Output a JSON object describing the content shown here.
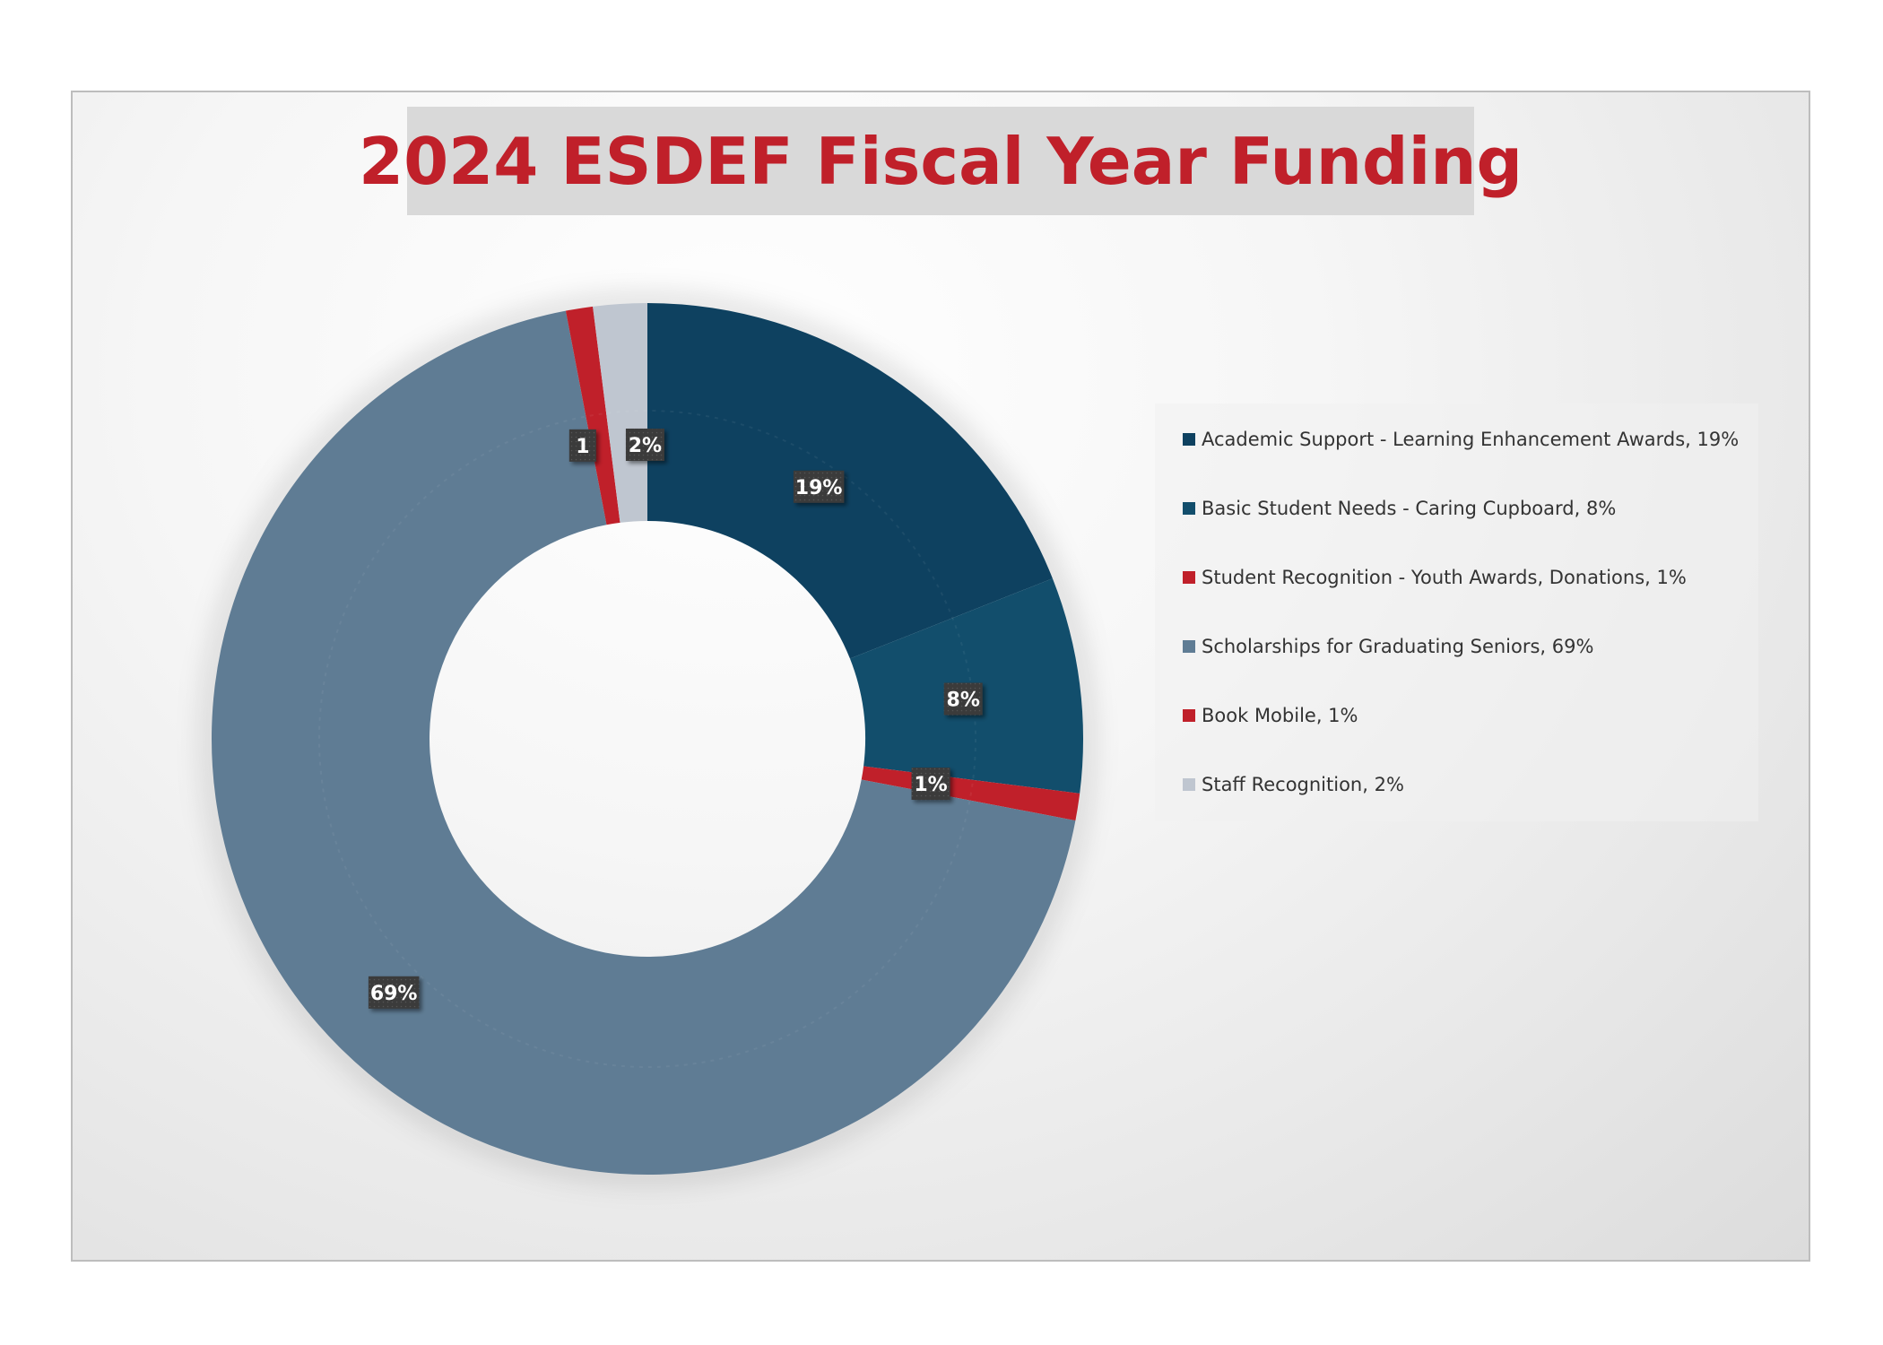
{
  "chart_data": {
    "type": "pie",
    "variant": "donut",
    "title": "2024 ESDEF Fiscal Year Funding",
    "slices": [
      {
        "label": "Academic Support - Learning Enhancement Awards",
        "value": 19,
        "data_label": "19%",
        "legend_text": "Academic Support - Learning Enhancement Awards, 19%",
        "color": "#0e4160"
      },
      {
        "label": "Basic Student Needs - Caring Cupboard",
        "value": 8,
        "data_label": "8%",
        "legend_text": "Basic Student Needs - Caring Cupboard, 8%",
        "color": "#124e6c"
      },
      {
        "label": "Student Recognition - Youth Awards, Donations",
        "value": 1,
        "data_label": "1%",
        "legend_text": "Student Recognition - Youth Awards, Donations, 1%",
        "color": "#c0202a"
      },
      {
        "label": "Scholarships for Graduating Seniors",
        "value": 69,
        "data_label": "69%",
        "legend_text": "Scholarships for Graduating Seniors, 69%",
        "color": "#5f7c94"
      },
      {
        "label": "Book Mobile",
        "value": 1,
        "data_label": "1",
        "legend_text": "Book Mobile, 1%",
        "color": "#c0202a"
      },
      {
        "label": "Staff Recognition",
        "value": 2,
        "data_label": "2%",
        "legend_text": "Staff Recognition, 2%",
        "color": "#bfc6d0"
      }
    ],
    "legend_position": "right"
  },
  "colors": {
    "title_text": "#c0202a",
    "title_background": "#d9d9d9",
    "label_box": "#3a3a3a"
  }
}
